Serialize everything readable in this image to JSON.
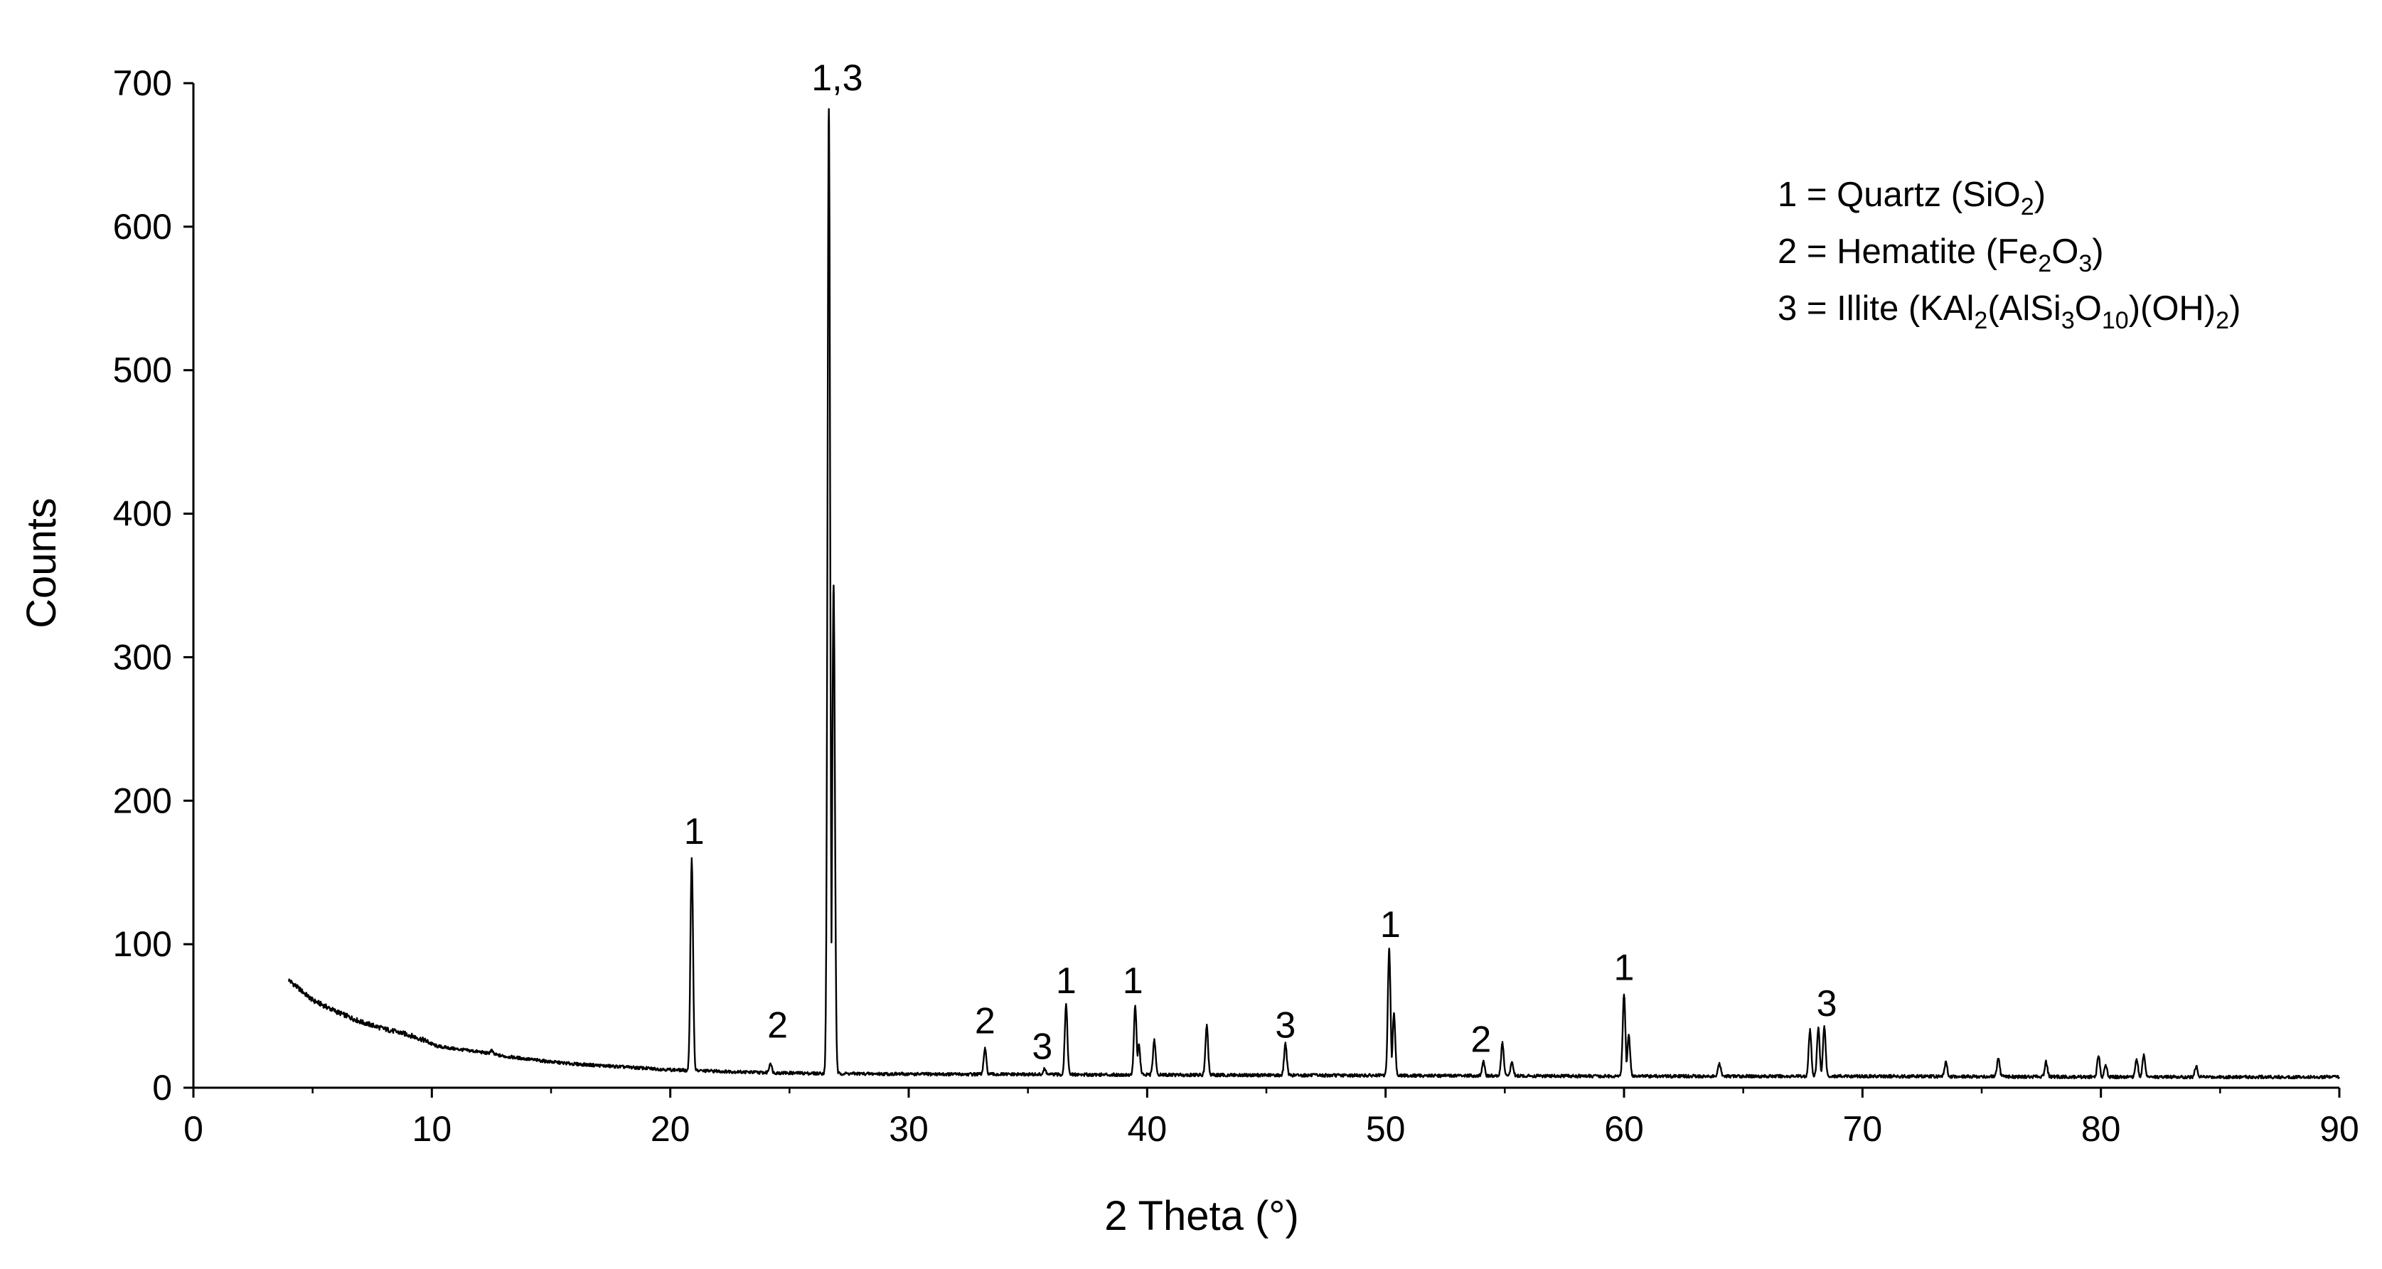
{
  "chart_data": {
    "type": "line",
    "title": "",
    "xlabel": "2 Theta (°)",
    "ylabel": "Counts",
    "xlim": [
      0,
      90
    ],
    "ylim": [
      0,
      700
    ],
    "x_ticks": [
      0,
      10,
      20,
      30,
      40,
      50,
      60,
      70,
      80,
      90
    ],
    "y_ticks": [
      0,
      100,
      200,
      300,
      400,
      500,
      600,
      700
    ],
    "grid": false,
    "legend_position": "top-right",
    "series": [
      {
        "color": "#000000",
        "background": [
          [
            4,
            75
          ],
          [
            5,
            61
          ],
          [
            6,
            53
          ],
          [
            7,
            46
          ],
          [
            8,
            41
          ],
          [
            9,
            37
          ],
          [
            9.7,
            33
          ],
          [
            10.2,
            29
          ],
          [
            11,
            27
          ],
          [
            12,
            25
          ],
          [
            13,
            22
          ],
          [
            14,
            20
          ],
          [
            15,
            18
          ],
          [
            16,
            16.5
          ],
          [
            17,
            15.5
          ],
          [
            18,
            14.5
          ],
          [
            19,
            13.5
          ],
          [
            20,
            12.5
          ],
          [
            20.8,
            12
          ],
          [
            22,
            11.5
          ],
          [
            24,
            10.5
          ],
          [
            26,
            10
          ],
          [
            30,
            9.5
          ],
          [
            40,
            9
          ],
          [
            50,
            8.5
          ],
          [
            60,
            8
          ],
          [
            70,
            8
          ],
          [
            80,
            7.5
          ],
          [
            90,
            7.5
          ]
        ],
        "peaks": [
          {
            "x": 12.5,
            "y": 26
          },
          {
            "x": 20.9,
            "y": 160
          },
          {
            "x": 24.2,
            "y": 17
          },
          {
            "x": 26.65,
            "y": 682
          },
          {
            "x": 26.85,
            "y": 350
          },
          {
            "x": 33.2,
            "y": 27
          },
          {
            "x": 35.7,
            "y": 13
          },
          {
            "x": 36.6,
            "y": 58
          },
          {
            "x": 39.5,
            "y": 57
          },
          {
            "x": 39.65,
            "y": 30
          },
          {
            "x": 40.3,
            "y": 33
          },
          {
            "x": 42.5,
            "y": 43
          },
          {
            "x": 45.8,
            "y": 31
          },
          {
            "x": 50.15,
            "y": 97
          },
          {
            "x": 50.35,
            "y": 52
          },
          {
            "x": 54.1,
            "y": 18
          },
          {
            "x": 54.9,
            "y": 31
          },
          {
            "x": 55.3,
            "y": 18
          },
          {
            "x": 60.0,
            "y": 65
          },
          {
            "x": 60.2,
            "y": 37
          },
          {
            "x": 64.0,
            "y": 17
          },
          {
            "x": 67.8,
            "y": 40
          },
          {
            "x": 68.15,
            "y": 42
          },
          {
            "x": 68.4,
            "y": 43
          },
          {
            "x": 73.5,
            "y": 18
          },
          {
            "x": 75.7,
            "y": 20
          },
          {
            "x": 77.7,
            "y": 18
          },
          {
            "x": 79.9,
            "y": 22
          },
          {
            "x": 80.2,
            "y": 16
          },
          {
            "x": 81.5,
            "y": 20
          },
          {
            "x": 81.8,
            "y": 23
          },
          {
            "x": 84.0,
            "y": 15
          }
        ]
      }
    ],
    "annotations": [
      {
        "text": "1,3",
        "x": 27.0,
        "y": 695
      },
      {
        "text": "1",
        "x": 21.0,
        "y": 170
      },
      {
        "text": "2",
        "x": 24.5,
        "y": 35
      },
      {
        "text": "2",
        "x": 33.2,
        "y": 38
      },
      {
        "text": "3",
        "x": 35.6,
        "y": 20
      },
      {
        "text": "1",
        "x": 36.6,
        "y": 66
      },
      {
        "text": "1",
        "x": 39.4,
        "y": 66
      },
      {
        "text": "3",
        "x": 45.8,
        "y": 35
      },
      {
        "text": "1",
        "x": 50.2,
        "y": 105
      },
      {
        "text": "2",
        "x": 54.0,
        "y": 25
      },
      {
        "text": "1",
        "x": 60.0,
        "y": 75
      },
      {
        "text": "3",
        "x": 68.5,
        "y": 50
      }
    ]
  },
  "legend": {
    "items": [
      {
        "prefix": "1 = Quartz (SiO",
        "parts": [
          {
            "t": "2",
            "sub": true
          },
          {
            "t": ")",
            "sub": false
          }
        ]
      },
      {
        "prefix": "2 = Hematite (Fe",
        "parts": [
          {
            "t": "2",
            "sub": true
          },
          {
            "t": "O",
            "sub": false
          },
          {
            "t": "3",
            "sub": true
          },
          {
            "t": ")",
            "sub": false
          }
        ]
      },
      {
        "prefix": "3 = Illite (KAl",
        "parts": [
          {
            "t": "2",
            "sub": true
          },
          {
            "t": "(AlSi",
            "sub": false
          },
          {
            "t": "3",
            "sub": true
          },
          {
            "t": "O",
            "sub": false
          },
          {
            "t": "10",
            "sub": true
          },
          {
            "t": ")(OH)",
            "sub": false
          },
          {
            "t": "2",
            "sub": true
          },
          {
            "t": ")",
            "sub": false
          }
        ]
      }
    ]
  }
}
